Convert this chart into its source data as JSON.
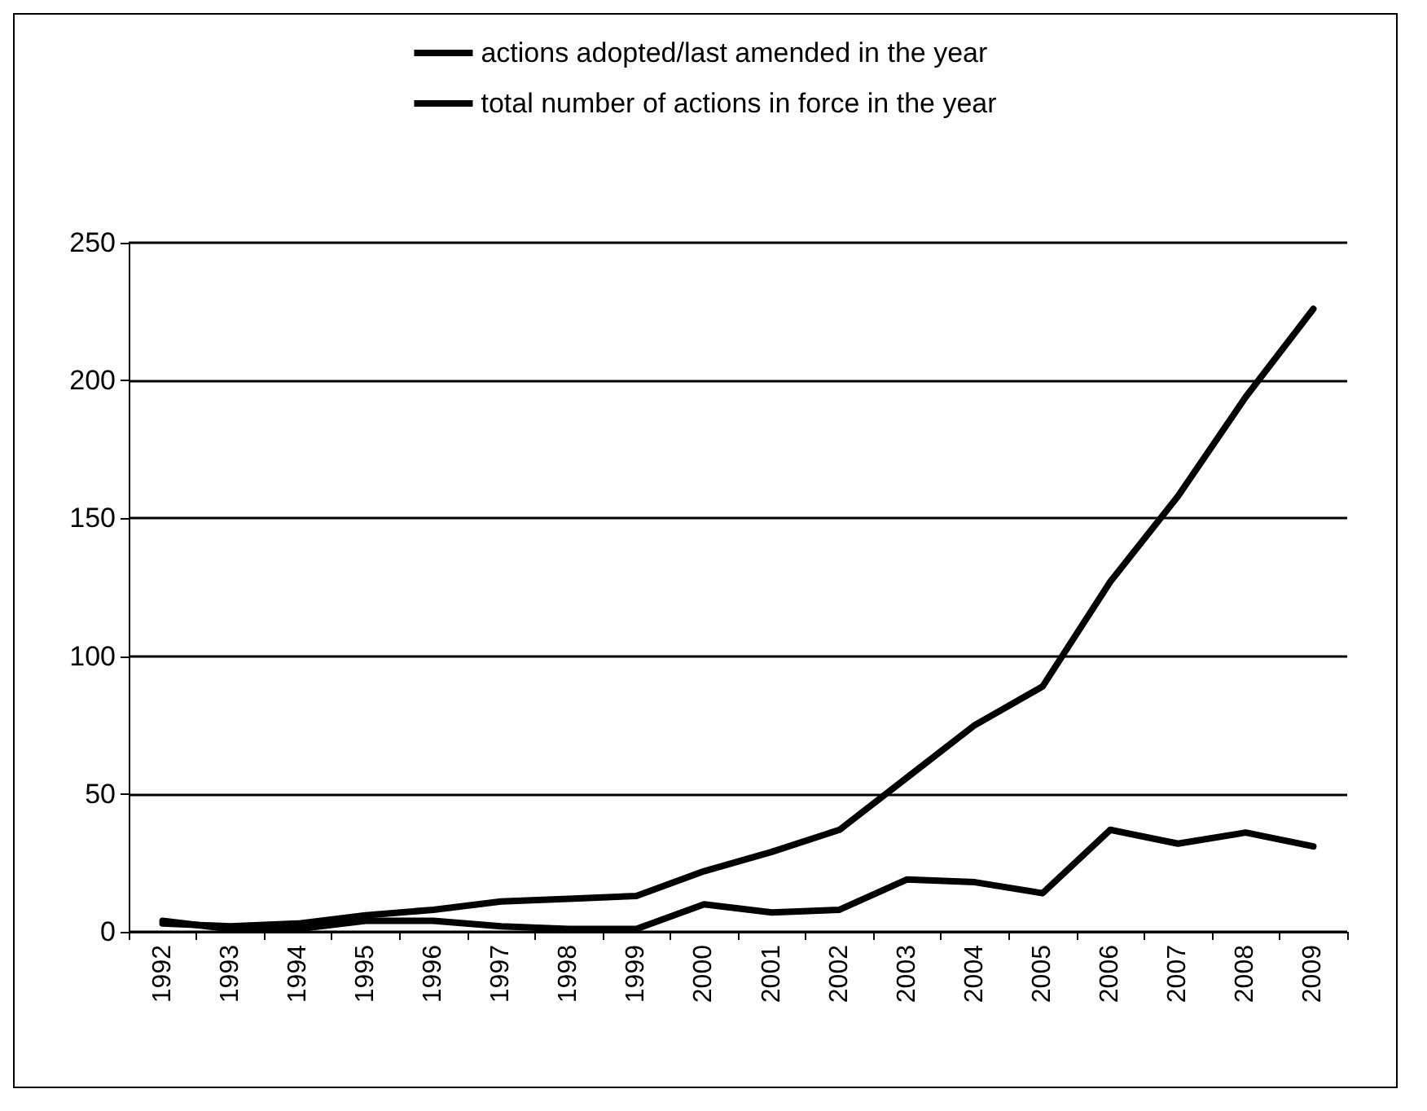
{
  "chart_data": {
    "type": "line",
    "categories": [
      "1992",
      "1993",
      "1994",
      "1995",
      "1996",
      "1997",
      "1998",
      "1999",
      "2000",
      "2001",
      "2002",
      "2003",
      "2004",
      "2005",
      "2006",
      "2007",
      "2008",
      "2009"
    ],
    "series": [
      {
        "name": "actions adopted/last amended in the year",
        "color": "#000000",
        "values": [
          4,
          1,
          1,
          4,
          4,
          2,
          1,
          1,
          10,
          7,
          8,
          19,
          18,
          14,
          37,
          32,
          36,
          31
        ]
      },
      {
        "name": "total number of actions in force in the year",
        "color": "#000000",
        "values": [
          3,
          2,
          3,
          6,
          8,
          11,
          12,
          13,
          22,
          29,
          37,
          56,
          75,
          89,
          127,
          158,
          194,
          226
        ]
      }
    ],
    "ylim": [
      0,
      250
    ],
    "yticks": [
      0,
      50,
      100,
      150,
      200,
      250
    ],
    "grid": "y",
    "legend": "top",
    "marker": "none",
    "line_style": "solid"
  }
}
